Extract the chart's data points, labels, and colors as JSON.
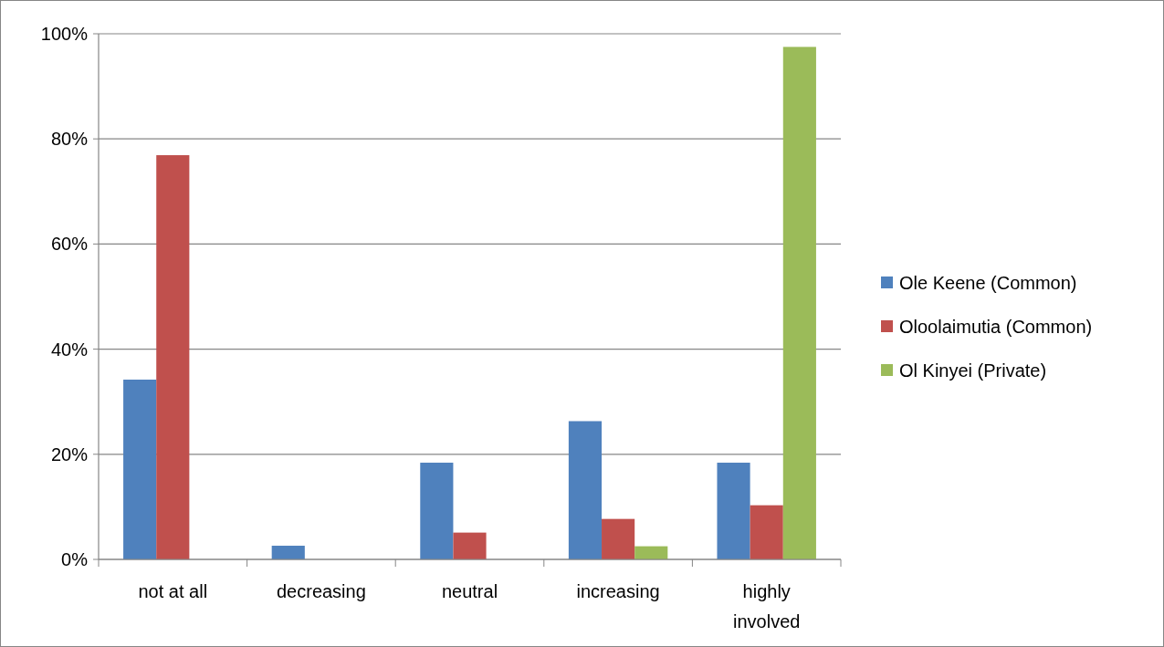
{
  "chart_data": {
    "type": "bar",
    "categories": [
      "not at all",
      "decreasing",
      "neutral",
      "increasing",
      "highly involved"
    ],
    "series": [
      {
        "name": "Ole Keene (Common)",
        "color": "#4f81bd",
        "values": [
          34.2,
          2.6,
          18.4,
          26.3,
          18.4
        ]
      },
      {
        "name": "Oloolaimutia (Common)",
        "color": "#c0504d",
        "values": [
          76.9,
          0,
          5.1,
          7.7,
          10.3
        ]
      },
      {
        "name": "Ol Kinyei (Private)",
        "color": "#9bbb59",
        "values": [
          0,
          0,
          0,
          2.5,
          97.5
        ]
      }
    ],
    "ylim": [
      0,
      100
    ],
    "yticks": [
      {
        "value": 0,
        "label": "0%"
      },
      {
        "value": 20,
        "label": "20%"
      },
      {
        "value": 40,
        "label": "40%"
      },
      {
        "value": 60,
        "label": "60%"
      },
      {
        "value": 80,
        "label": "80%"
      },
      {
        "value": 100,
        "label": "100%"
      }
    ],
    "grid": "y",
    "legend": "right"
  }
}
